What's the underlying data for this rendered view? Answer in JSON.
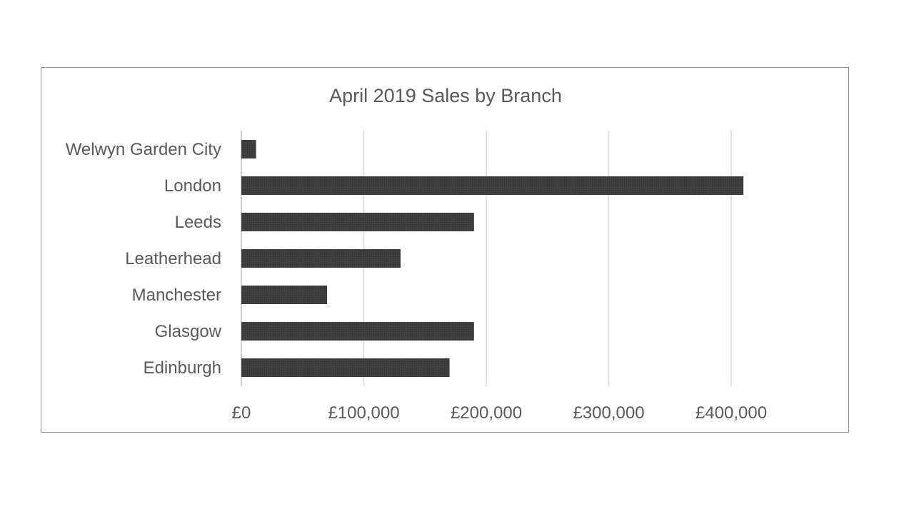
{
  "chart_data": {
    "type": "bar",
    "orientation": "horizontal",
    "title": "April 2019 Sales by Branch",
    "categories": [
      "Welwyn Garden City",
      "London",
      "Leeds",
      "Leatherhead",
      "Manchester",
      "Glasgow",
      "Edinburgh"
    ],
    "values": [
      12000,
      410000,
      190000,
      130000,
      70000,
      190000,
      170000
    ],
    "x_ticks": [
      0,
      100000,
      200000,
      300000,
      400000
    ],
    "x_tick_labels": [
      "£0",
      "£100,000",
      "£200,000",
      "£300,000",
      "£400,000"
    ],
    "xlim": [
      0,
      400000
    ],
    "xlabel": "",
    "ylabel": "",
    "grid": "vertical",
    "legend": "none",
    "colors": {
      "bar": "#404040",
      "bar_pattern": "#2b2b2b",
      "text": "#595959",
      "grid": "#d9d9d9",
      "border": "#8c8c8c"
    }
  }
}
